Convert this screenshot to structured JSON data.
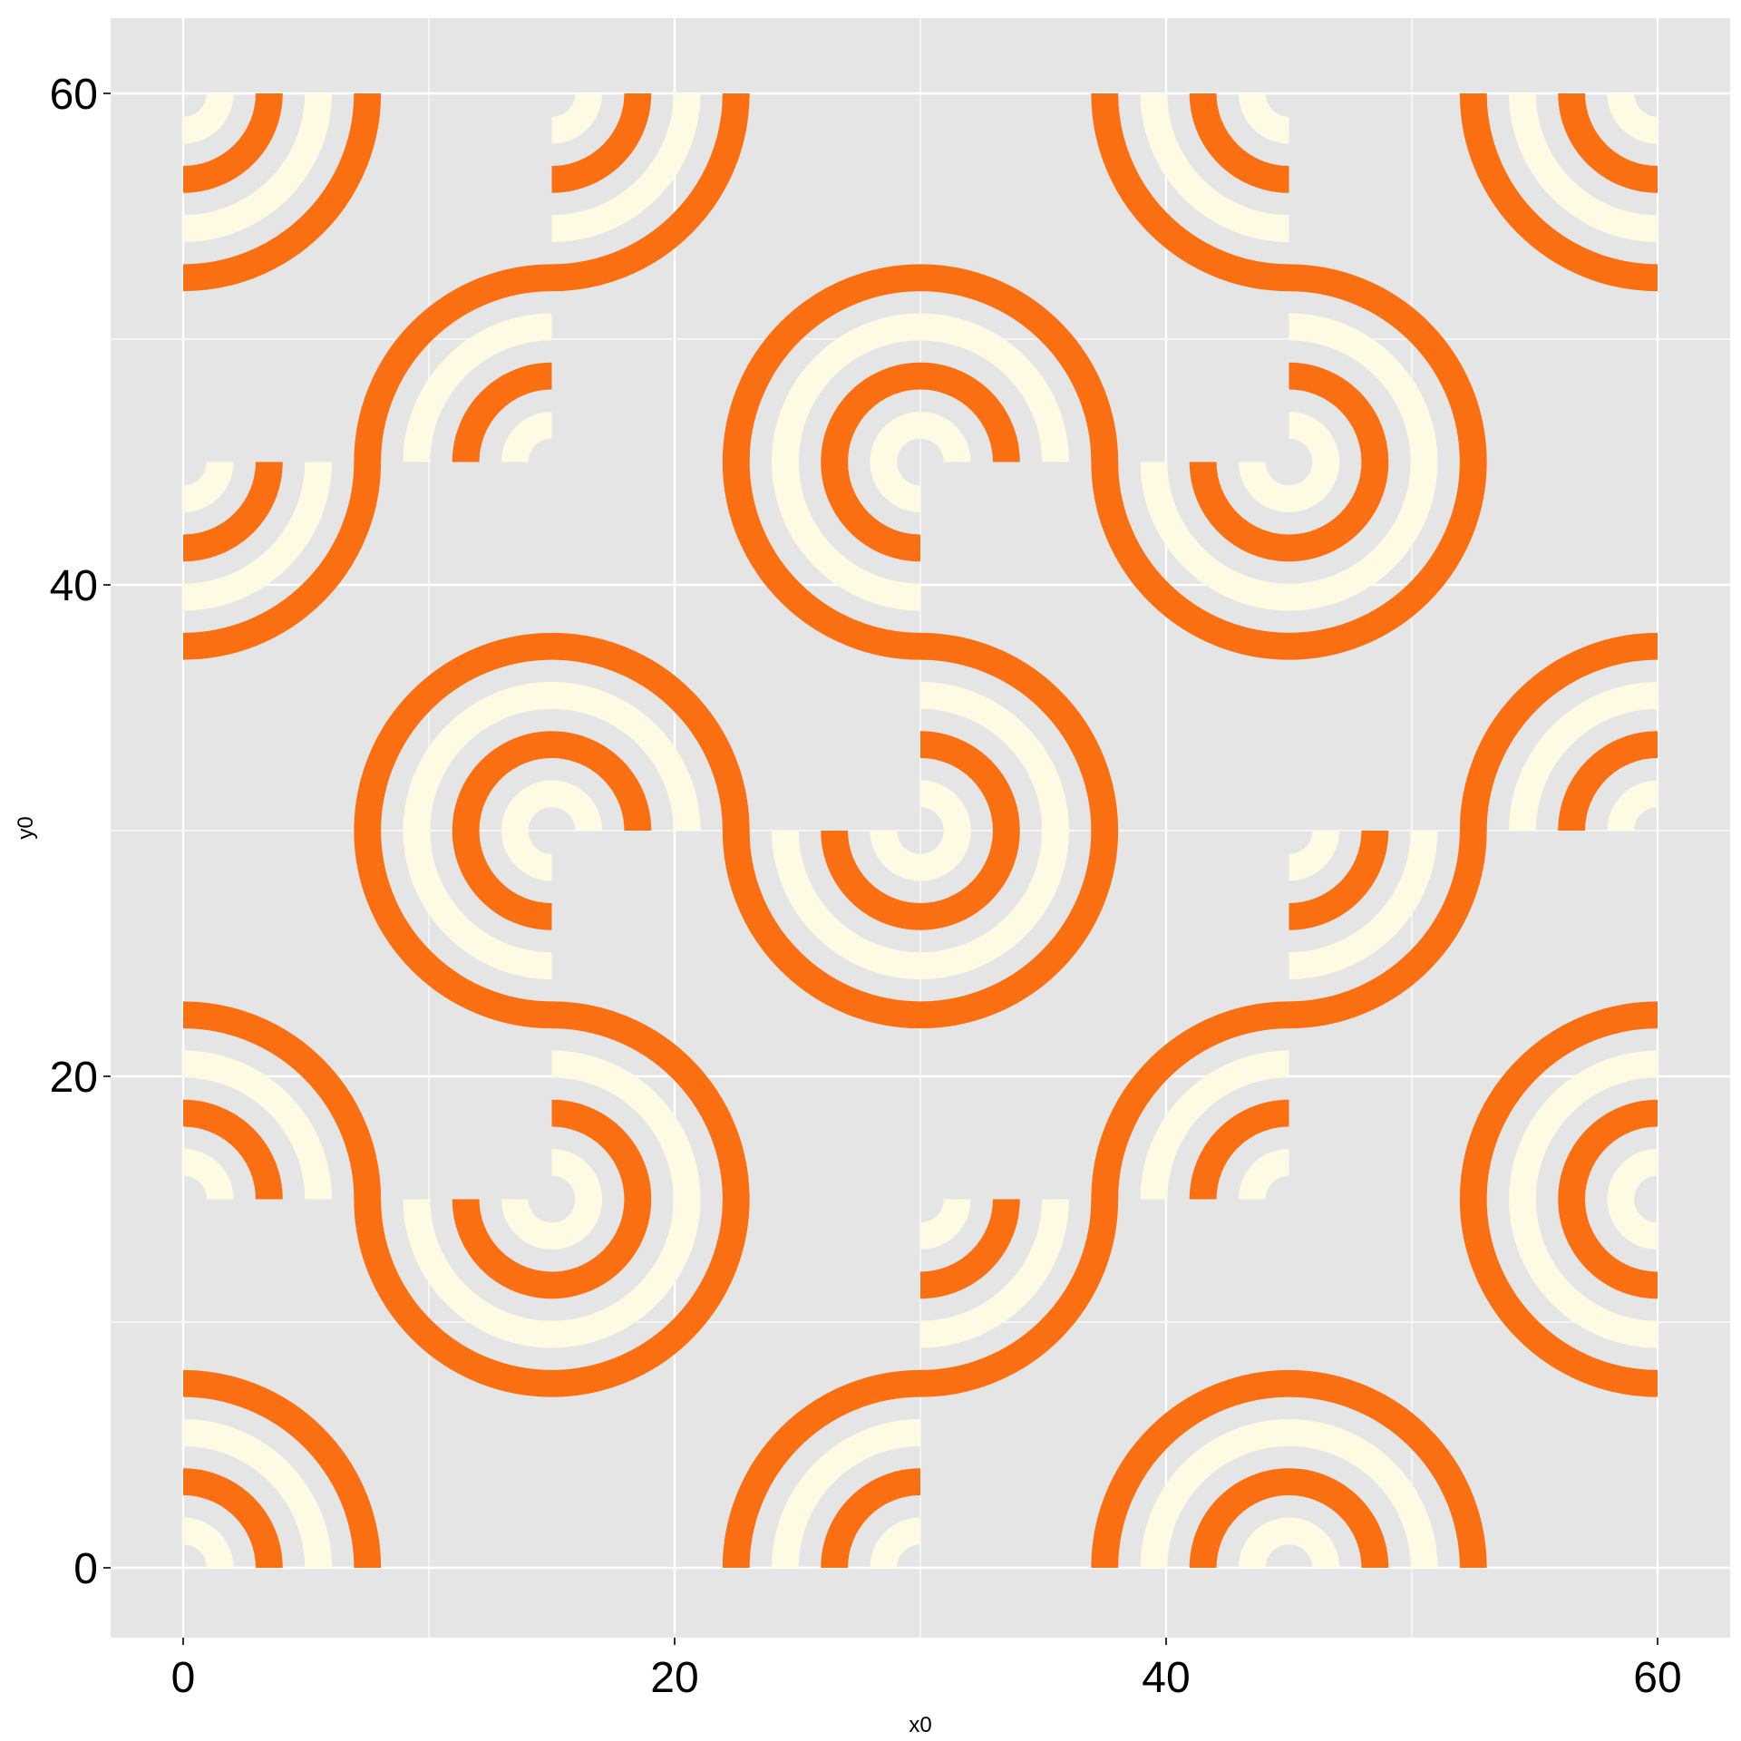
{
  "chart_data": {
    "type": "other",
    "description_of_marks": "truchet tile pattern of concentric quarter-circle arcs",
    "xlabel": "x0",
    "ylabel": "y0",
    "xlim": [
      -3,
      62
    ],
    "ylim": [
      -3,
      63
    ],
    "x_ticks": [
      0,
      20,
      40,
      60
    ],
    "x_tick_labels": [
      "0",
      "20",
      "40",
      "60"
    ],
    "y_ticks": [
      0,
      20,
      40,
      60
    ],
    "y_tick_labels": [
      "0",
      "20",
      "40",
      "60"
    ],
    "grid": true,
    "tile_size": 15,
    "tile_columns": 4,
    "tile_rows": 4,
    "tile_flip": [
      [
        0,
        1,
        1,
        0
      ],
      [
        0,
        0,
        1,
        1
      ],
      [
        1,
        0,
        0,
        1
      ],
      [
        1,
        1,
        0,
        0
      ]
    ],
    "ring_series": [
      {
        "radius": 1.5,
        "color": "light"
      },
      {
        "radius": 3.5,
        "color": "orange"
      },
      {
        "radius": 5.5,
        "color": "light"
      },
      {
        "radius": 7.5,
        "color": "orange"
      }
    ],
    "colors": {
      "orange": "#f96f12",
      "light": "#fffae3",
      "panel": "#e5e5e5",
      "grid": "#ffffff"
    }
  }
}
